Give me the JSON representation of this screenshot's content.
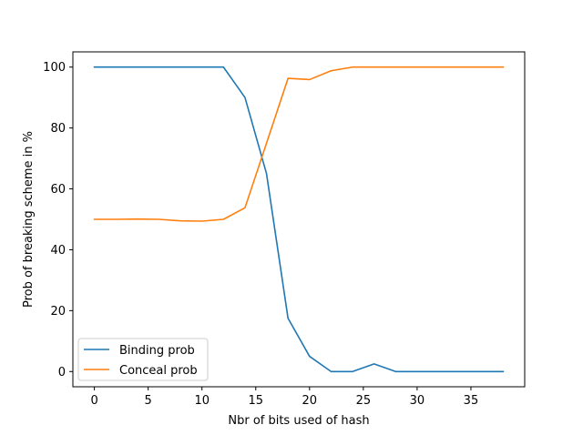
{
  "chart_data": {
    "type": "line",
    "xlabel": "Nbr of bits used of hash",
    "ylabel": "Prob of breaking scheme in %",
    "xlim": [
      -2,
      40
    ],
    "ylim": [
      -5,
      105
    ],
    "xticks": [
      "0",
      "5",
      "10",
      "15",
      "20",
      "25",
      "30",
      "35"
    ],
    "yticks": [
      "0",
      "20",
      "40",
      "60",
      "80",
      "100"
    ],
    "legend_position": "lower-left",
    "grid": false,
    "series": [
      {
        "name": "Binding prob",
        "color": "#1f77b4",
        "x": [
          0,
          2,
          4,
          6,
          8,
          10,
          12,
          14,
          16,
          18,
          20,
          22,
          24,
          26,
          28,
          30,
          32,
          34,
          36,
          38
        ],
        "y": [
          100,
          100,
          100,
          100,
          100,
          100,
          100,
          90,
          65,
          17.5,
          5,
          0,
          0,
          2.5,
          0,
          0,
          0,
          0,
          0,
          0
        ]
      },
      {
        "name": "Conceal prob",
        "color": "#ff7f0e",
        "x": [
          0,
          2,
          4,
          6,
          8,
          10,
          12,
          14,
          16,
          18,
          20,
          22,
          24,
          26,
          28,
          30,
          32,
          34,
          36,
          38
        ],
        "y": [
          50,
          50,
          50.1,
          50,
          49.5,
          49.4,
          50,
          53.8,
          75,
          96.3,
          95.9,
          98.8,
          100,
          100,
          100,
          100,
          100,
          100,
          100,
          100
        ]
      }
    ]
  }
}
